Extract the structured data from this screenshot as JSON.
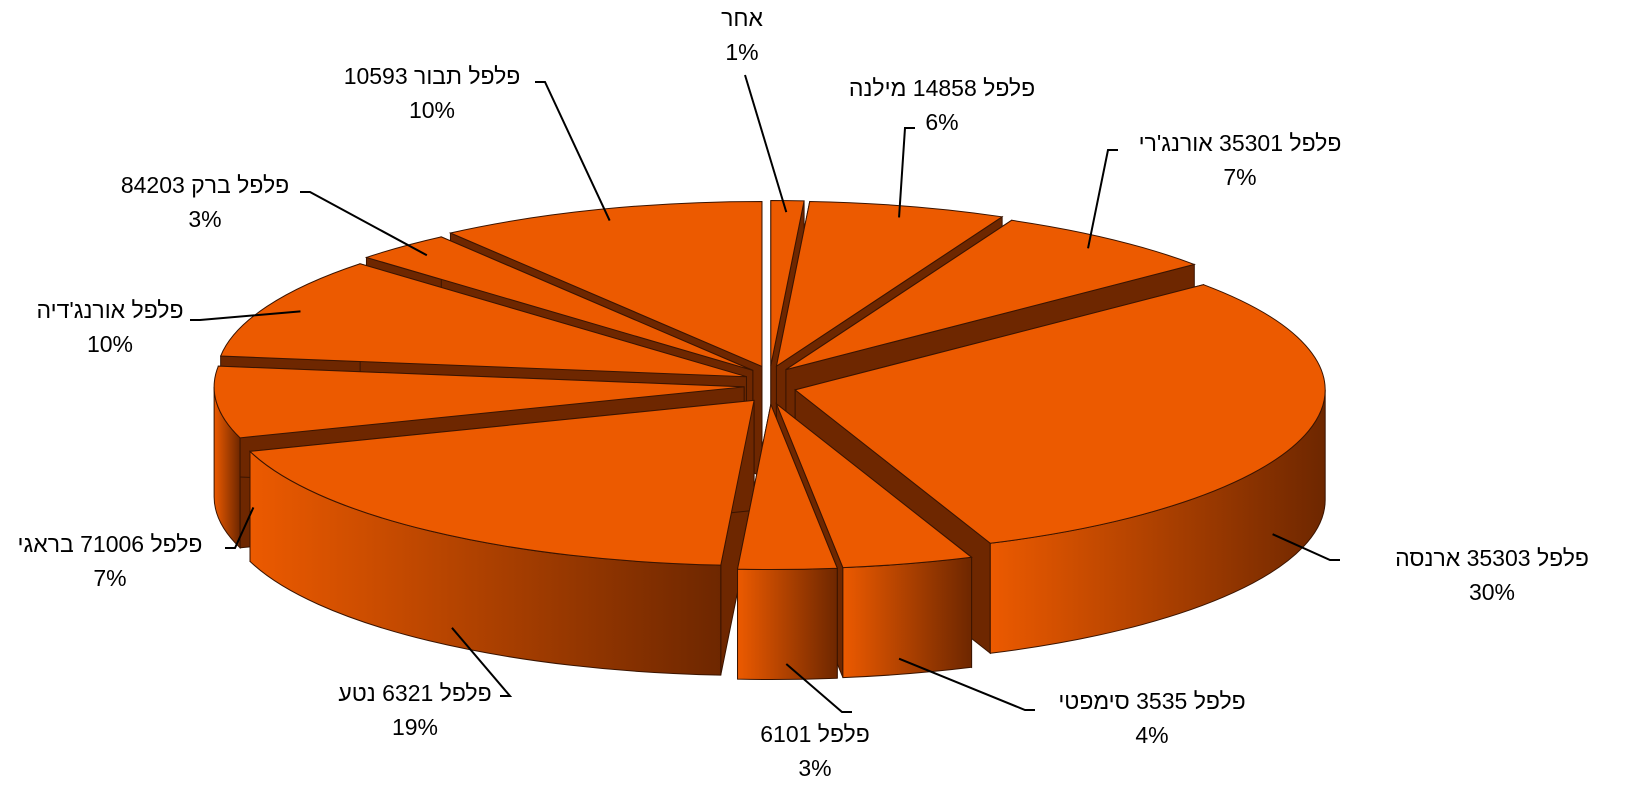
{
  "chart_data": {
    "type": "pie3d",
    "categories": [
      "אחר",
      "פלפל 14858 מילנה",
      "פלפל 35301 אורנג'רי",
      "פלפל 35303 ארנסה",
      "פלפל 3535 סימפטי",
      "פלפל 6101",
      "פלפל 6321 נטע",
      "פלפל 71006 בראגי",
      "פלפל אורנג'דיה",
      "פלפל ברק 84203",
      "פלפל תבור 10593"
    ],
    "values": [
      1,
      6,
      7,
      30,
      4,
      3,
      19,
      7,
      10,
      3,
      10
    ],
    "value_labels": [
      "1%",
      "6%",
      "7%",
      "30%",
      "4%",
      "3%",
      "19%",
      "7%",
      "10%",
      "3%",
      "10%"
    ],
    "color": "#ec5a00",
    "side_color": "#6e2700"
  }
}
